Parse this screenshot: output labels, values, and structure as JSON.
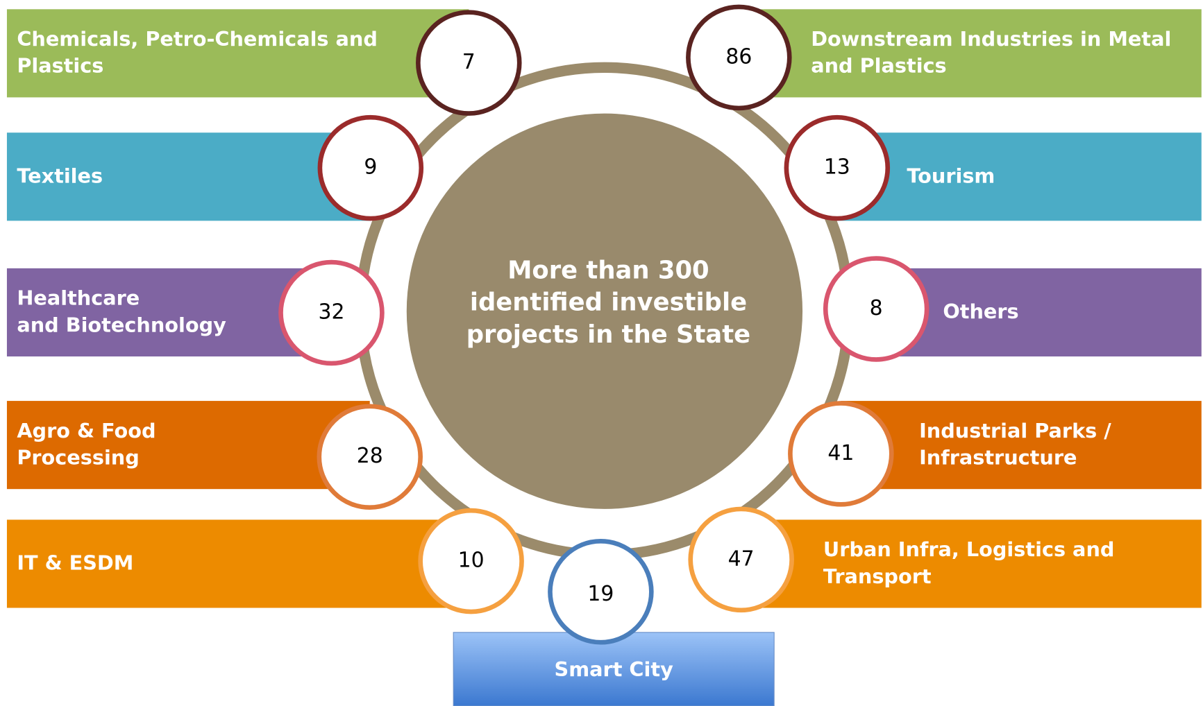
{
  "center_text": [
    "More than 300",
    "identified investible",
    "projects in the State"
  ],
  "sectors": [
    {
      "label": [
        "Chemicals, Petro-Chemicals and",
        "Plastics"
      ],
      "count": 7
    },
    {
      "label": [
        "Downstream Industries in Metal",
        "and Plastics"
      ],
      "count": 86
    },
    {
      "label": [
        "Textiles"
      ],
      "count": 9
    },
    {
      "label": [
        "Tourism"
      ],
      "count": 13
    },
    {
      "label": [
        "Healthcare",
        "and Biotechnology"
      ],
      "count": 32
    },
    {
      "label": [
        "Others"
      ],
      "count": 8
    },
    {
      "label": [
        "Agro & Food",
        "Processing"
      ],
      "count": 28
    },
    {
      "label": [
        "Industrial Parks /",
        "Infrastructure"
      ],
      "count": 41
    },
    {
      "label": [
        "IT & ESDM"
      ],
      "count": 10
    },
    {
      "label": [
        "Urban Infra, Logistics and",
        "Transport"
      ],
      "count": 47
    },
    {
      "label": [
        "Smart City"
      ],
      "count": 19
    }
  ]
}
